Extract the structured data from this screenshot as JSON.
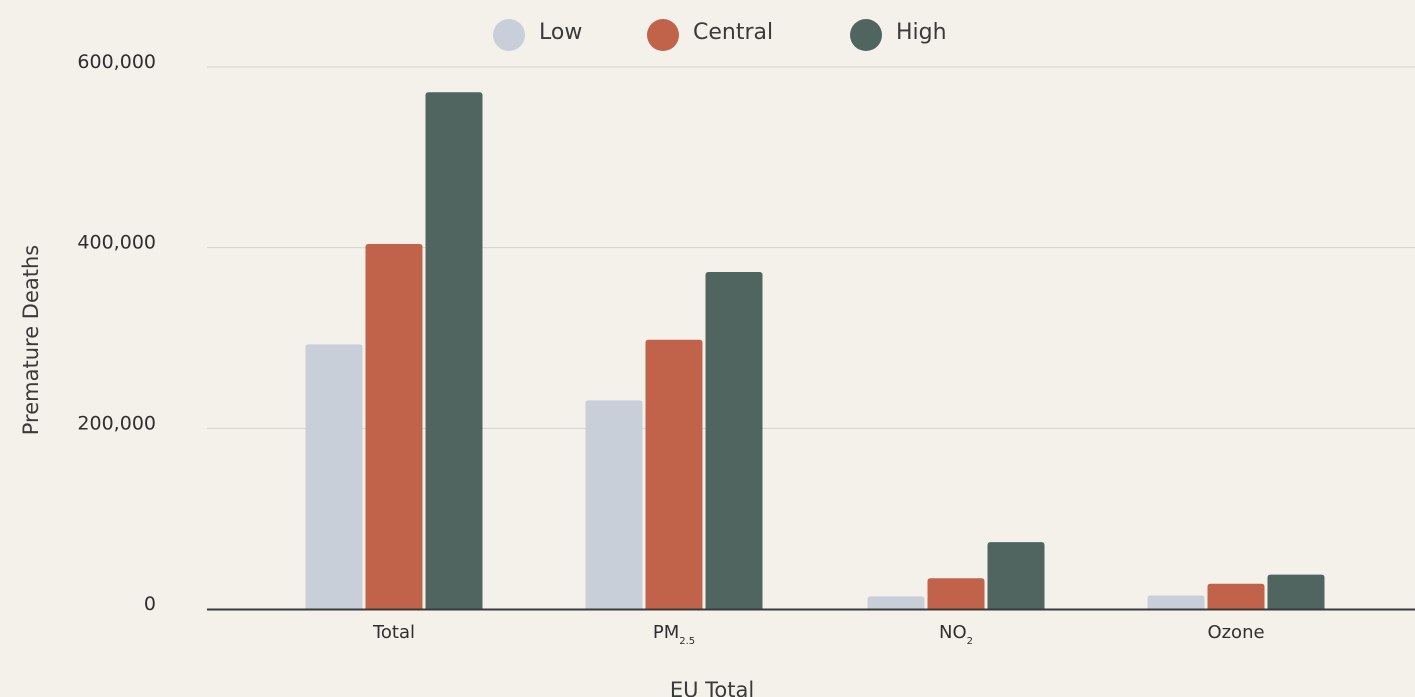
{
  "chart_data": {
    "type": "bar",
    "ylabel": "Premature Deaths",
    "xlabel": "EU Total",
    "ylim": [
      0,
      600000
    ],
    "yticks": [
      {
        "value": 0,
        "label": "0"
      },
      {
        "value": 200000,
        "label": "200,000"
      },
      {
        "value": 400000,
        "label": "400,000"
      },
      {
        "value": 600000,
        "label": "600,000"
      }
    ],
    "categories": [
      {
        "main": "Total",
        "sub": ""
      },
      {
        "main": "PM",
        "sub": "2.5"
      },
      {
        "main": "NO",
        "sub": "2"
      },
      {
        "main": "Ozone",
        "sub": ""
      }
    ],
    "series": [
      {
        "name": "Low",
        "color": "#c8cfd9",
        "values": [
          293000,
          231000,
          14000,
          15000
        ]
      },
      {
        "name": "Central",
        "color": "#c1624a",
        "values": [
          404000,
          298000,
          34000,
          28000
        ]
      },
      {
        "name": "High",
        "color": "#506560",
        "values": [
          572000,
          373000,
          74000,
          38000
        ]
      }
    ],
    "grid": true,
    "legend_position": "top-center"
  }
}
